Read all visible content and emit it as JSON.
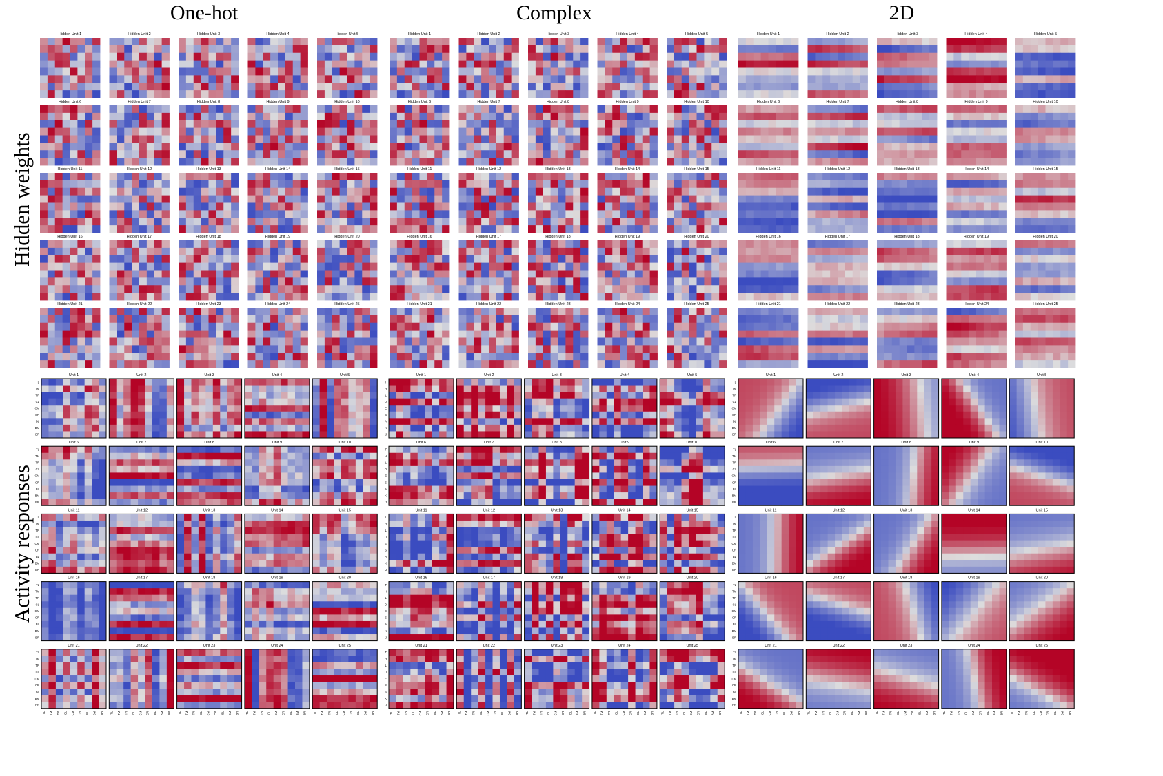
{
  "column_titles": [
    "One-hot",
    "Complex",
    "2D"
  ],
  "row_titles": [
    "Hidden weights",
    "Activity responses"
  ],
  "chart_data": {
    "type": "heatmap",
    "colormap": "coolwarm",
    "colormap_colors": {
      "low": "#3b4cc0",
      "mid": "#dddddd",
      "high": "#b40426"
    },
    "hidden_weights": {
      "grid": "8x8",
      "panel_titles": [
        "Hidden Unit 1",
        "Hidden Unit 2",
        "Hidden Unit 3",
        "Hidden Unit 4",
        "Hidden Unit 5",
        "Hidden Unit 6",
        "Hidden Unit 7",
        "Hidden Unit 8",
        "Hidden Unit 9",
        "Hidden Unit 10",
        "Hidden Unit 11",
        "Hidden Unit 12",
        "Hidden Unit 13",
        "Hidden Unit 14",
        "Hidden Unit 15",
        "Hidden Unit 16",
        "Hidden Unit 17",
        "Hidden Unit 18",
        "Hidden Unit 19",
        "Hidden Unit 20",
        "Hidden Unit 21",
        "Hidden Unit 22",
        "Hidden Unit 23",
        "Hidden Unit 24",
        "Hidden Unit 25"
      ]
    },
    "activity_responses": {
      "grid": "9x9",
      "panel_titles": [
        "Unit 1",
        "Unit 2",
        "Unit 3",
        "Unit 4",
        "Unit 5",
        "Unit 6",
        "Unit 7",
        "Unit 8",
        "Unit 9",
        "Unit 10",
        "Unit 11",
        "Unit 12",
        "Unit 13",
        "Unit 14",
        "Unit 15",
        "Unit 16",
        "Unit 17",
        "Unit 18",
        "Unit 19",
        "Unit 20",
        "Unit 21",
        "Unit 22",
        "Unit 23",
        "Unit 24",
        "Unit 25"
      ],
      "position_labels": [
        "TL",
        "TM",
        "TR",
        "CL",
        "CM",
        "CR",
        "BL",
        "BM",
        "BR"
      ],
      "complex_labels": [
        "T",
        "H",
        "L",
        "O",
        "E",
        "S",
        "A",
        "K",
        "J"
      ]
    }
  }
}
